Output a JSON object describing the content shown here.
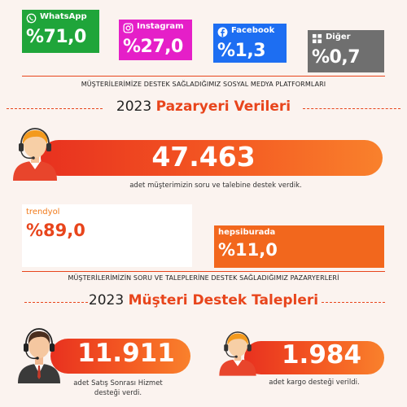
{
  "social": {
    "whatsapp": {
      "name": "WhatsApp",
      "value": "%71,0",
      "color": "#1fa53a"
    },
    "instagram": {
      "name": "Instagram",
      "value": "%27,0",
      "color": "#e51fc8"
    },
    "facebook": {
      "name": "Facebook",
      "value": "%1,3",
      "color": "#1d6ef2"
    },
    "other": {
      "name": "Diğer",
      "value": "%0,7",
      "color": "#6f6f6f"
    },
    "caption": "MÜŞTERİLERİMİZE DESTEK SAĞLADIĞIMIZ SOSYAL MEDYA PLATFORMLARI"
  },
  "marketplace_section": {
    "year": "2023",
    "title": "Pazaryeri Verileri"
  },
  "customers": {
    "count": "47.463",
    "note": "adet müşterimizin soru ve talebine destek verdik."
  },
  "marketplaces": {
    "trendyol": {
      "logo": "trendyol",
      "value": "%89,0"
    },
    "hepsiburada": {
      "logo": "hepsiburada",
      "value": "%11,0",
      "color": "#f2671d"
    },
    "caption": "MÜŞTERİLERİMİZİN SORU VE TALEPLERİNE DESTEK SAĞLADIĞIMIZ PAZARYERLERİ"
  },
  "support_section": {
    "year": "2023",
    "title": "Müşteri Destek Talepleri"
  },
  "after_sales": {
    "count": "11.911",
    "note_line1": "adet Satış Sonrası Hizmet",
    "note_line2": "desteği verdi."
  },
  "cargo": {
    "count": "1.984",
    "note": "adet kargo desteği verildi."
  },
  "icons": [
    "whatsapp-icon",
    "instagram-icon",
    "facebook-icon",
    "other-platform-icon",
    "support-agent-icon"
  ],
  "colors": {
    "accent": "#e8451c",
    "background": "#fbf3ef"
  }
}
